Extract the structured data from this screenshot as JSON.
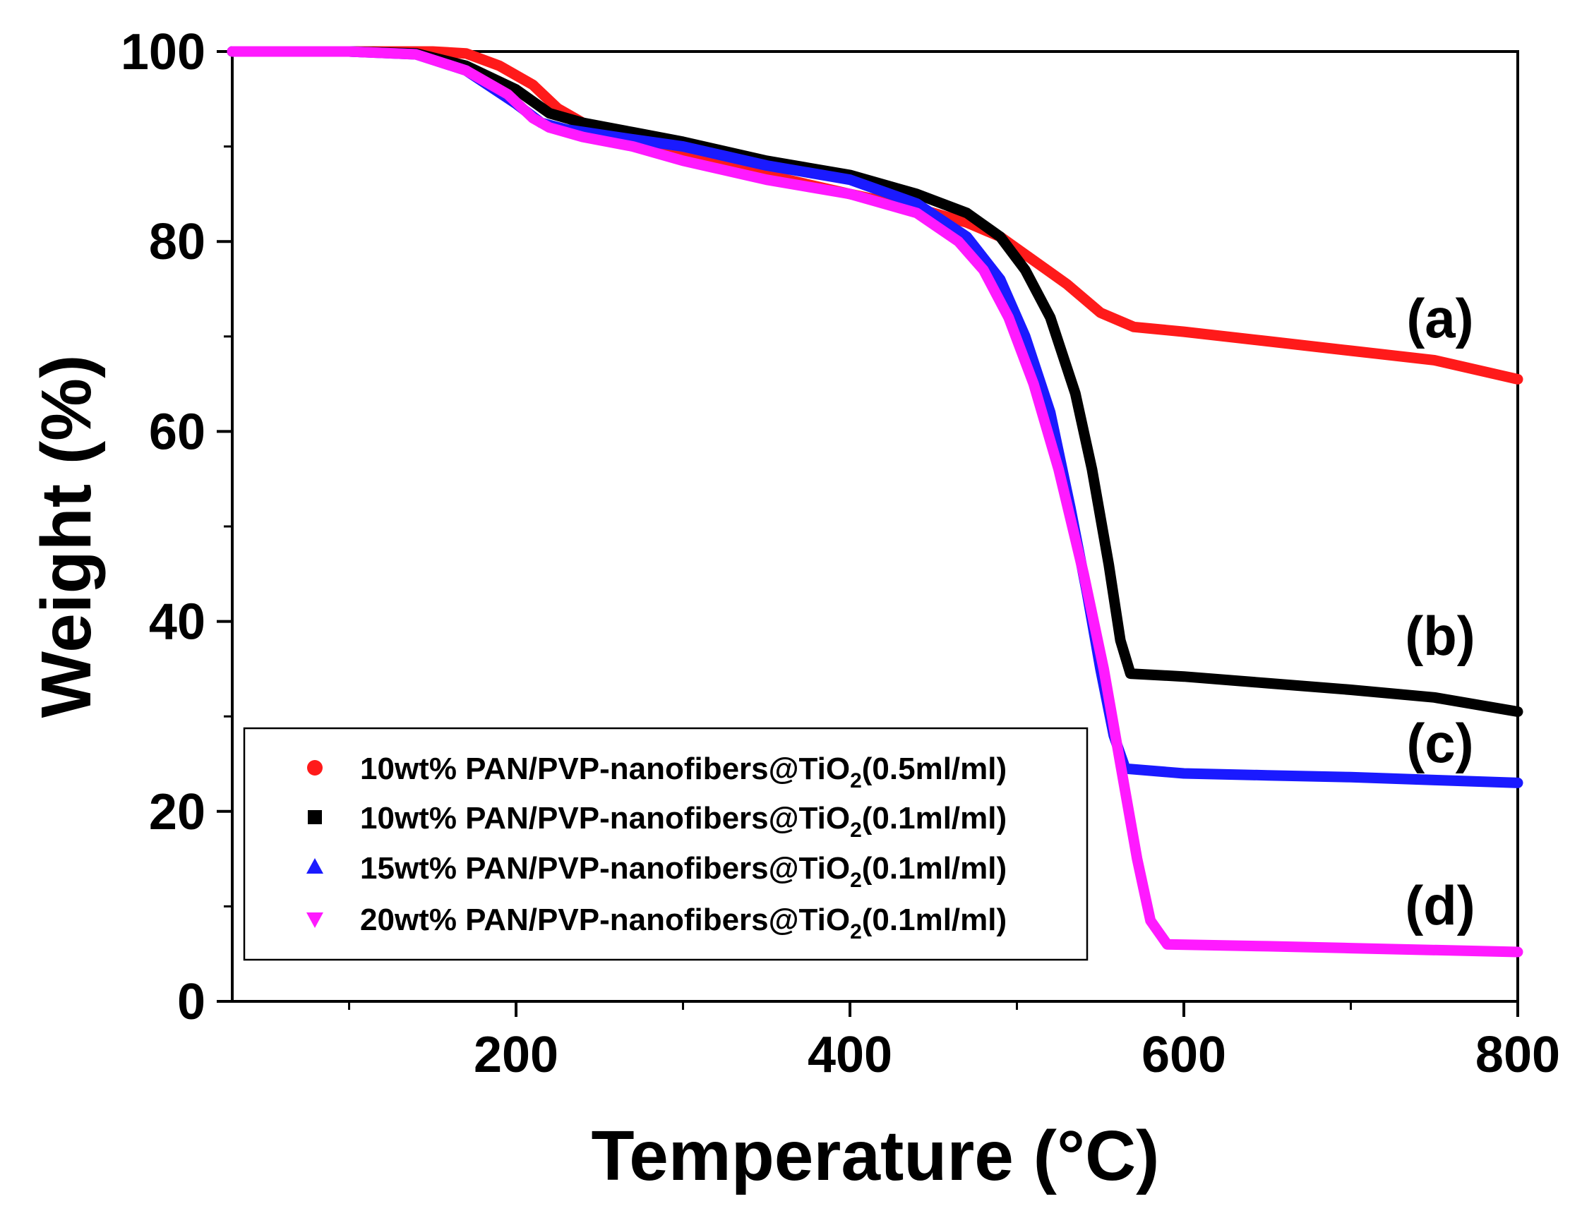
{
  "chart_data": {
    "type": "line",
    "title": "",
    "xlabel": "Temperature (°C)",
    "ylabel": "Weight (%)",
    "xlim": [
      30,
      800
    ],
    "ylim": [
      0,
      100
    ],
    "xticks": [
      200,
      400,
      600,
      800
    ],
    "yticks": [
      0,
      20,
      40,
      60,
      80,
      100
    ],
    "legend_position": "bottom-left",
    "series": [
      {
        "name": "10wt% PAN/PVP-nanofibers@TiO2(0.5ml/ml)",
        "legend_prefix": "10wt% PAN/PVP-nanofibers@TiO",
        "legend_sub": "2",
        "legend_suffix": "(0.5ml/ml)",
        "curve_label": "(a)",
        "color": "#ff1a1a",
        "marker": "circle",
        "points": [
          [
            30,
            100
          ],
          [
            100,
            100
          ],
          [
            150,
            100
          ],
          [
            170,
            99.8
          ],
          [
            190,
            98.5
          ],
          [
            210,
            96.5
          ],
          [
            225,
            94
          ],
          [
            240,
            92.5
          ],
          [
            270,
            91
          ],
          [
            300,
            89.5
          ],
          [
            350,
            87
          ],
          [
            400,
            85
          ],
          [
            440,
            83.5
          ],
          [
            470,
            82
          ],
          [
            490,
            80.5
          ],
          [
            510,
            78
          ],
          [
            530,
            75.5
          ],
          [
            550,
            72.5
          ],
          [
            570,
            71
          ],
          [
            600,
            70.5
          ],
          [
            650,
            69.5
          ],
          [
            700,
            68.5
          ],
          [
            750,
            67.5
          ],
          [
            800,
            65.5
          ]
        ]
      },
      {
        "name": "10wt% PAN/PVP-nanofibers@TiO2(0.1ml/ml)",
        "legend_prefix": "10wt% PAN/PVP-nanofibers@TiO",
        "legend_sub": "2",
        "legend_suffix": "(0.1ml/ml)",
        "curve_label": "(b)",
        "color": "#000000",
        "marker": "square",
        "points": [
          [
            30,
            100
          ],
          [
            100,
            100
          ],
          [
            140,
            99.8
          ],
          [
            170,
            98.5
          ],
          [
            200,
            96
          ],
          [
            220,
            93.5
          ],
          [
            240,
            92.5
          ],
          [
            270,
            91.5
          ],
          [
            300,
            90.5
          ],
          [
            350,
            88.5
          ],
          [
            400,
            87
          ],
          [
            440,
            85
          ],
          [
            470,
            83
          ],
          [
            490,
            80.5
          ],
          [
            505,
            77
          ],
          [
            520,
            72
          ],
          [
            535,
            64
          ],
          [
            545,
            56
          ],
          [
            555,
            46
          ],
          [
            562,
            38
          ],
          [
            568,
            34.5
          ],
          [
            600,
            34.2
          ],
          [
            650,
            33.5
          ],
          [
            700,
            32.8
          ],
          [
            750,
            32
          ],
          [
            800,
            30.5
          ]
        ]
      },
      {
        "name": "15wt% PAN/PVP-nanofibers@TiO2(0.1ml/ml)",
        "legend_prefix": "15wt% PAN/PVP-nanofibers@TiO",
        "legend_sub": "2",
        "legend_suffix": "(0.1ml/ml)",
        "curve_label": "(c)",
        "color": "#1a1aff",
        "marker": "triangle-up",
        "points": [
          [
            30,
            100
          ],
          [
            100,
            100
          ],
          [
            140,
            99.7
          ],
          [
            170,
            98
          ],
          [
            200,
            94.5
          ],
          [
            215,
            92.5
          ],
          [
            230,
            91.8
          ],
          [
            260,
            91
          ],
          [
            300,
            90
          ],
          [
            350,
            88
          ],
          [
            400,
            86.5
          ],
          [
            440,
            84
          ],
          [
            470,
            80.5
          ],
          [
            490,
            76
          ],
          [
            505,
            70
          ],
          [
            520,
            62
          ],
          [
            532,
            52
          ],
          [
            542,
            43
          ],
          [
            550,
            35
          ],
          [
            558,
            28
          ],
          [
            565,
            24.5
          ],
          [
            600,
            24
          ],
          [
            650,
            23.8
          ],
          [
            700,
            23.6
          ],
          [
            750,
            23.3
          ],
          [
            800,
            23
          ]
        ]
      },
      {
        "name": "20wt% PAN/PVP-nanofibers@TiO2(0.1ml/ml)",
        "legend_prefix": "20wt% PAN/PVP-nanofibers@TiO",
        "legend_sub": "2",
        "legend_suffix": "(0.1ml/ml)",
        "curve_label": "(d)",
        "color": "#ff1aff",
        "marker": "triangle-down",
        "points": [
          [
            30,
            100
          ],
          [
            100,
            100
          ],
          [
            140,
            99.7
          ],
          [
            170,
            98
          ],
          [
            195,
            95.5
          ],
          [
            210,
            93
          ],
          [
            220,
            92
          ],
          [
            240,
            91
          ],
          [
            270,
            90
          ],
          [
            300,
            88.5
          ],
          [
            350,
            86.5
          ],
          [
            400,
            85
          ],
          [
            440,
            83
          ],
          [
            465,
            80
          ],
          [
            480,
            77
          ],
          [
            495,
            72
          ],
          [
            510,
            65
          ],
          [
            525,
            56
          ],
          [
            540,
            45
          ],
          [
            552,
            35
          ],
          [
            562,
            25
          ],
          [
            572,
            15
          ],
          [
            580,
            8.5
          ],
          [
            590,
            6
          ],
          [
            650,
            5.8
          ],
          [
            700,
            5.6
          ],
          [
            800,
            5.2
          ]
        ]
      }
    ]
  }
}
